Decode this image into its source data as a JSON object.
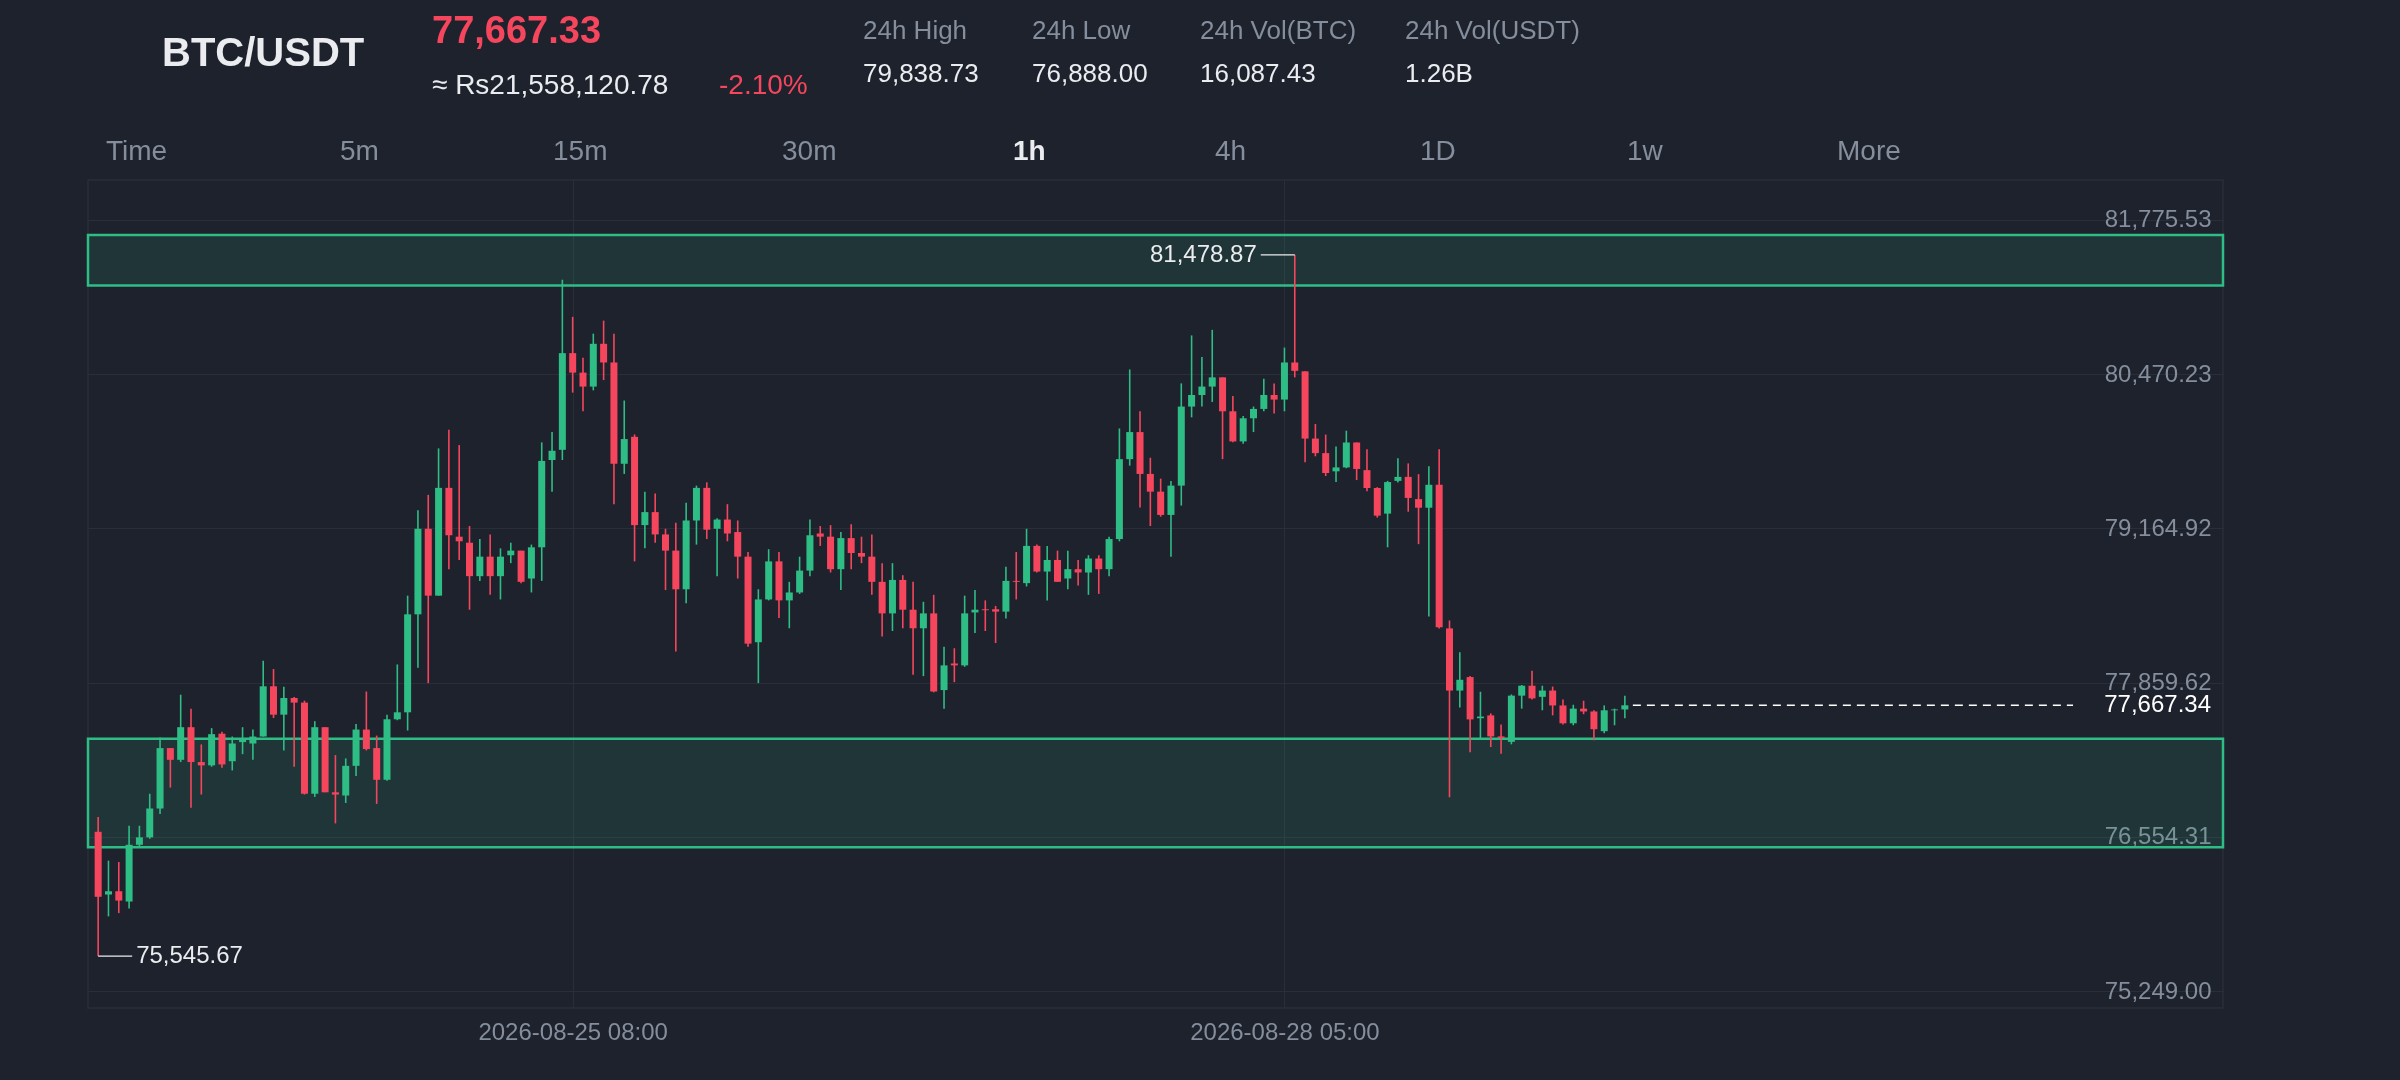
{
  "chart_data": {
    "type": "candlestick",
    "title": "BTC/USDT",
    "subtitle": "77,667.33",
    "x": [
      "2026-08-23T10:00",
      "2026-08-23T11:00",
      "2026-08-23T12:00",
      "2026-08-23T13:00",
      "2026-08-23T14:00",
      "2026-08-23T15:00",
      "2026-08-23T16:00",
      "2026-08-23T17:00",
      "2026-08-23T18:00",
      "2026-08-23T19:00",
      "2026-08-23T20:00",
      "2026-08-23T21:00",
      "2026-08-23T22:00",
      "2026-08-23T23:00",
      "2026-08-24T00:00",
      "2026-08-24T01:00",
      "2026-08-24T02:00",
      "2026-08-24T03:00",
      "2026-08-24T04:00",
      "2026-08-24T05:00",
      "2026-08-24T06:00",
      "2026-08-24T07:00",
      "2026-08-24T08:00",
      "2026-08-24T09:00",
      "2026-08-24T10:00",
      "2026-08-24T11:00",
      "2026-08-24T12:00",
      "2026-08-24T13:00",
      "2026-08-24T14:00",
      "2026-08-24T15:00",
      "2026-08-24T16:00",
      "2026-08-24T17:00",
      "2026-08-24T18:00",
      "2026-08-24T19:00",
      "2026-08-24T20:00",
      "2026-08-24T21:00",
      "2026-08-24T22:00",
      "2026-08-24T23:00",
      "2026-08-25T00:00",
      "2026-08-25T01:00",
      "2026-08-25T02:00",
      "2026-08-25T03:00",
      "2026-08-25T04:00",
      "2026-08-25T05:00",
      "2026-08-25T06:00",
      "2026-08-25T07:00",
      "2026-08-25T08:00",
      "2026-08-25T09:00",
      "2026-08-25T10:00",
      "2026-08-25T11:00",
      "2026-08-25T12:00",
      "2026-08-25T13:00",
      "2026-08-25T14:00",
      "2026-08-25T15:00",
      "2026-08-25T16:00",
      "2026-08-25T17:00",
      "2026-08-25T18:00",
      "2026-08-25T19:00",
      "2026-08-25T20:00",
      "2026-08-25T21:00",
      "2026-08-25T22:00",
      "2026-08-25T23:00",
      "2026-08-26T00:00",
      "2026-08-26T01:00",
      "2026-08-26T02:00",
      "2026-08-26T03:00",
      "2026-08-26T04:00",
      "2026-08-26T05:00",
      "2026-08-26T06:00",
      "2026-08-26T07:00",
      "2026-08-26T08:00",
      "2026-08-26T09:00",
      "2026-08-26T10:00",
      "2026-08-26T11:00",
      "2026-08-26T12:00",
      "2026-08-26T13:00",
      "2026-08-26T14:00",
      "2026-08-26T15:00",
      "2026-08-26T16:00",
      "2026-08-26T17:00",
      "2026-08-26T18:00",
      "2026-08-26T19:00",
      "2026-08-26T20:00",
      "2026-08-26T21:00",
      "2026-08-26T22:00",
      "2026-08-26T23:00",
      "2026-08-27T00:00",
      "2026-08-27T01:00",
      "2026-08-27T02:00",
      "2026-08-27T03:00",
      "2026-08-27T04:00",
      "2026-08-27T05:00",
      "2026-08-27T06:00",
      "2026-08-27T07:00",
      "2026-08-27T08:00",
      "2026-08-27T09:00",
      "2026-08-27T10:00",
      "2026-08-27T11:00",
      "2026-08-27T12:00",
      "2026-08-27T13:00",
      "2026-08-27T14:00",
      "2026-08-27T15:00",
      "2026-08-27T16:00",
      "2026-08-27T17:00",
      "2026-08-27T18:00",
      "2026-08-27T19:00",
      "2026-08-27T20:00",
      "2026-08-27T21:00",
      "2026-08-27T22:00",
      "2026-08-27T23:00",
      "2026-08-28T00:00",
      "2026-08-28T01:00",
      "2026-08-28T02:00",
      "2026-08-28T03:00",
      "2026-08-28T04:00",
      "2026-08-28T05:00",
      "2026-08-28T06:00",
      "2026-08-28T07:00",
      "2026-08-28T08:00",
      "2026-08-28T09:00",
      "2026-08-28T10:00",
      "2026-08-28T11:00",
      "2026-08-28T12:00",
      "2026-08-28T13:00",
      "2026-08-28T14:00",
      "2026-08-28T15:00",
      "2026-08-28T16:00",
      "2026-08-28T17:00",
      "2026-08-28T18:00",
      "2026-08-28T19:00",
      "2026-08-28T20:00",
      "2026-08-28T21:00",
      "2026-08-28T22:00",
      "2026-08-28T23:00",
      "2026-08-29T00:00",
      "2026-08-29T01:00",
      "2026-08-29T02:00",
      "2026-08-29T03:00",
      "2026-08-29T04:00",
      "2026-08-29T05:00",
      "2026-08-29T06:00",
      "2026-08-29T07:00",
      "2026-08-29T08:00",
      "2026-08-29T09:00",
      "2026-08-29T10:00",
      "2026-08-29T11:00",
      "2026-08-29T12:00",
      "2026-08-29T13:00",
      "2026-08-29T14:00"
    ],
    "ohlc": [
      [
        76597,
        76723,
        75545.67,
        76047
      ],
      [
        76066,
        76353,
        75881,
        76094
      ],
      [
        76094,
        76341,
        75909,
        76015
      ],
      [
        76007,
        76648,
        75948,
        76487
      ],
      [
        76487,
        76648,
        76471,
        76550
      ],
      [
        76550,
        76919,
        76538,
        76794
      ],
      [
        76794,
        77395,
        76747,
        77305
      ],
      [
        77305,
        77305,
        76971,
        77206
      ],
      [
        77206,
        77757,
        77187,
        77482
      ],
      [
        77482,
        77639,
        76801,
        77187
      ],
      [
        77187,
        77336,
        76912,
        77159
      ],
      [
        77159,
        77474,
        77147,
        77423
      ],
      [
        77427,
        77443,
        77139,
        77167
      ],
      [
        77194,
        77403,
        77116,
        77344
      ],
      [
        77356,
        77482,
        77254,
        77375
      ],
      [
        77344,
        77462,
        77206,
        77403
      ],
      [
        77403,
        78044,
        77403,
        77828
      ],
      [
        77828,
        77974,
        77560,
        77588
      ],
      [
        77588,
        77824,
        77285,
        77729
      ],
      [
        77729,
        77737,
        77147,
        77690
      ],
      [
        77690,
        77706,
        76912,
        76919
      ],
      [
        76919,
        77533,
        76892,
        77482
      ],
      [
        77482,
        77482,
        76931,
        76931
      ],
      [
        76931,
        77246,
        76668,
        76912
      ],
      [
        76904,
        77218,
        76841,
        77155
      ],
      [
        77155,
        77509,
        77069,
        77462
      ],
      [
        77462,
        77784,
        77285,
        77297
      ],
      [
        77305,
        77411,
        76833,
        77037
      ],
      [
        77037,
        77588,
        77029,
        77549
      ],
      [
        77549,
        78013,
        77541,
        77608
      ],
      [
        77608,
        78595,
        77454,
        78437
      ],
      [
        78437,
        79318,
        77985,
        79161
      ],
      [
        79161,
        79448,
        77855,
        78595
      ],
      [
        78595,
        79841,
        78595,
        79507
      ],
      [
        79507,
        79998,
        78819,
        79106
      ],
      [
        79094,
        79869,
        78897,
        79055
      ],
      [
        79043,
        79184,
        78476,
        78760
      ],
      [
        78760,
        79074,
        78720,
        78925
      ],
      [
        78925,
        79113,
        78602,
        78760
      ],
      [
        78760,
        78995,
        78563,
        78925
      ],
      [
        78937,
        79043,
        78870,
        78976
      ],
      [
        78976,
        78976,
        78701,
        78712
      ],
      [
        78740,
        79027,
        78622,
        79004
      ],
      [
        79004,
        79892,
        78720,
        79735
      ],
      [
        79743,
        79979,
        79475,
        79821
      ],
      [
        79829,
        81268,
        79743,
        80647
      ],
      [
        80647,
        80954,
        80313,
        80482
      ],
      [
        80482,
        80608,
        80155,
        80364
      ],
      [
        80364,
        80812,
        80332,
        80726
      ],
      [
        80726,
        80922,
        80419,
        80568
      ],
      [
        80568,
        80812,
        79369,
        79711
      ],
      [
        79711,
        80246,
        79625,
        79920
      ],
      [
        79939,
        79959,
        78885,
        79192
      ],
      [
        79192,
        79475,
        78996,
        79302
      ],
      [
        79302,
        79459,
        79043,
        79113
      ],
      [
        79113,
        79161,
        78642,
        78976
      ],
      [
        78976,
        79212,
        78122,
        78649
      ],
      [
        78649,
        79381,
        78531,
        79231
      ],
      [
        79231,
        79526,
        79027,
        79507
      ],
      [
        79507,
        79554,
        79074,
        79153
      ],
      [
        79161,
        79250,
        78760,
        79239
      ],
      [
        79239,
        79369,
        79055,
        79121
      ],
      [
        79133,
        79231,
        78740,
        78925
      ],
      [
        78925,
        78964,
        78162,
        78189
      ],
      [
        78201,
        78649,
        77855,
        78563
      ],
      [
        78563,
        78988,
        78555,
        78885
      ],
      [
        78885,
        78964,
        78406,
        78555
      ],
      [
        78555,
        78712,
        78319,
        78622
      ],
      [
        78622,
        78925,
        78610,
        78807
      ],
      [
        78807,
        79239,
        78760,
        79106
      ],
      [
        79121,
        79184,
        79016,
        79094
      ],
      [
        79094,
        79192,
        78791,
        78819
      ],
      [
        78819,
        79133,
        78642,
        79082
      ],
      [
        79082,
        79200,
        78819,
        78956
      ],
      [
        78956,
        79094,
        78870,
        78925
      ],
      [
        78925,
        79113,
        78602,
        78712
      ],
      [
        78712,
        78870,
        78249,
        78445
      ],
      [
        78445,
        78870,
        78296,
        78728
      ],
      [
        78728,
        78768,
        78319,
        78476
      ],
      [
        78476,
        78712,
        77926,
        78319
      ],
      [
        78319,
        78543,
        77914,
        78445
      ],
      [
        78445,
        78602,
        77777,
        77784
      ],
      [
        77796,
        78162,
        77639,
        78005
      ],
      [
        78021,
        78150,
        77863,
        78005
      ],
      [
        78005,
        78595,
        77993,
        78445
      ],
      [
        78453,
        78642,
        78280,
        78476
      ],
      [
        78480,
        78555,
        78296,
        78472
      ],
      [
        78480,
        78508,
        78194,
        78460
      ],
      [
        78460,
        78839,
        78402,
        78720
      ],
      [
        78720,
        78964,
        78563,
        78712
      ],
      [
        78701,
        79161,
        78673,
        79016
      ],
      [
        79016,
        79027,
        78791,
        78799
      ],
      [
        78799,
        79016,
        78555,
        78897
      ],
      [
        78897,
        78976,
        78712,
        78712
      ],
      [
        78740,
        78976,
        78649,
        78819
      ],
      [
        78819,
        78897,
        78681,
        78791
      ],
      [
        78791,
        78937,
        78602,
        78909
      ],
      [
        78909,
        78937,
        78610,
        78819
      ],
      [
        78819,
        79094,
        78760,
        79074
      ],
      [
        79074,
        80010,
        79055,
        79750
      ],
      [
        79750,
        80509,
        79695,
        79979
      ],
      [
        79979,
        80155,
        79341,
        79625
      ],
      [
        79625,
        79762,
        79184,
        79475
      ],
      [
        79475,
        79585,
        79263,
        79278
      ],
      [
        79278,
        79566,
        78925,
        79526
      ],
      [
        79526,
        80391,
        79357,
        80195
      ],
      [
        80195,
        80797,
        80104,
        80293
      ],
      [
        80293,
        80615,
        80195,
        80364
      ],
      [
        80364,
        80844,
        80234,
        80442
      ],
      [
        80442,
        80442,
        79750,
        80155
      ],
      [
        80155,
        80285,
        79892,
        79900
      ],
      [
        79900,
        80116,
        79880,
        80096
      ],
      [
        80096,
        80195,
        79979,
        80175
      ],
      [
        80175,
        80431,
        80155,
        80293
      ],
      [
        80293,
        80391,
        80136,
        80254
      ],
      [
        80254,
        80694,
        80155,
        80568
      ],
      [
        80568,
        81478.87,
        80442,
        80497
      ],
      [
        80493,
        80493,
        79724,
        79924
      ],
      [
        79924,
        80048,
        79774,
        79801
      ],
      [
        79801,
        79958,
        79607,
        79633
      ],
      [
        79647,
        79857,
        79556,
        79680
      ],
      [
        79680,
        79991,
        79673,
        79891
      ],
      [
        79891,
        79891,
        79573,
        79667
      ],
      [
        79657,
        79834,
        79479,
        79506
      ],
      [
        79506,
        79513,
        79255,
        79272
      ],
      [
        79289,
        79566,
        79004,
        79556
      ],
      [
        79566,
        79757,
        79553,
        79600
      ],
      [
        79600,
        79714,
        79305,
        79422
      ],
      [
        79412,
        79623,
        79031,
        79339
      ],
      [
        79339,
        79690,
        78418,
        79533
      ],
      [
        79533,
        79834,
        78318,
        78328
      ],
      [
        78318,
        78385,
        76889,
        77792
      ],
      [
        77792,
        78117,
        77649,
        77883
      ],
      [
        77906,
        77916,
        77270,
        77548
      ],
      [
        77558,
        77782,
        77381,
        77572
      ],
      [
        77582,
        77599,
        77314,
        77404
      ],
      [
        77404,
        77505,
        77257,
        77391
      ],
      [
        77358,
        77759,
        77337,
        77749
      ],
      [
        77749,
        77839,
        77639,
        77833
      ],
      [
        77833,
        77960,
        77716,
        77726
      ],
      [
        77739,
        77833,
        77625,
        77792
      ],
      [
        77792,
        77826,
        77582,
        77666
      ],
      [
        77666,
        77716,
        77505,
        77515
      ],
      [
        77515,
        77672,
        77498,
        77639
      ],
      [
        77639,
        77706,
        77592,
        77615
      ],
      [
        77615,
        77625,
        77371,
        77465
      ],
      [
        77448,
        77666,
        77431,
        77625
      ],
      [
        77625,
        77639,
        77498,
        77632
      ],
      [
        77632,
        77749,
        77558,
        77667.34
      ]
    ],
    "colors": [
      "#f6465d",
      "#2ebd85",
      "#f6465d",
      "#2ebd85",
      "#2ebd85",
      "#2ebd85",
      "#2ebd85",
      "#f6465d",
      "#2ebd85",
      "#f6465d",
      "#f6465d",
      "#2ebd85",
      "#f6465d",
      "#2ebd85",
      "#2ebd85",
      "#2ebd85",
      "#2ebd85",
      "#f6465d",
      "#2ebd85",
      "#f6465d",
      "#f6465d",
      "#2ebd85",
      "#f6465d",
      "#f6465d",
      "#2ebd85",
      "#2ebd85",
      "#f6465d",
      "#f6465d",
      "#2ebd85",
      "#2ebd85",
      "#2ebd85",
      "#2ebd85",
      "#f6465d",
      "#2ebd85",
      "#f6465d",
      "#f6465d",
      "#f6465d",
      "#2ebd85",
      "#f6465d",
      "#2ebd85",
      "#2ebd85",
      "#f6465d",
      "#2ebd85",
      "#2ebd85",
      "#2ebd85",
      "#2ebd85",
      "#f6465d",
      "#f6465d",
      "#2ebd85",
      "#f6465d",
      "#f6465d",
      "#2ebd85",
      "#f6465d",
      "#2ebd85",
      "#f6465d",
      "#f6465d",
      "#f6465d",
      "#2ebd85",
      "#2ebd85",
      "#f6465d",
      "#2ebd85",
      "#f6465d",
      "#f6465d",
      "#f6465d",
      "#2ebd85",
      "#2ebd85",
      "#f6465d",
      "#2ebd85",
      "#2ebd85",
      "#2ebd85",
      "#f6465d",
      "#f6465d",
      "#2ebd85",
      "#f6465d",
      "#f6465d",
      "#f6465d",
      "#f6465d",
      "#2ebd85",
      "#f6465d",
      "#f6465d",
      "#2ebd85",
      "#f6465d",
      "#2ebd85",
      "#f6465d",
      "#2ebd85",
      "#2ebd85",
      "#f6465d",
      "#f6465d",
      "#2ebd85",
      "#f6465d",
      "#2ebd85",
      "#f6465d",
      "#2ebd85",
      "#f6465d",
      "#2ebd85",
      "#f6465d",
      "#2ebd85",
      "#f6465d",
      "#2ebd85",
      "#2ebd85",
      "#2ebd85",
      "#f6465d",
      "#f6465d",
      "#f6465d",
      "#2ebd85",
      "#2ebd85",
      "#2ebd85",
      "#2ebd85",
      "#2ebd85",
      "#f6465d",
      "#f6465d",
      "#2ebd85",
      "#2ebd85",
      "#2ebd85",
      "#f6465d",
      "#2ebd85",
      "#f6465d",
      "#f6465d",
      "#f6465d",
      "#f6465d",
      "#2ebd85",
      "#2ebd85",
      "#f6465d",
      "#f6465d",
      "#f6465d",
      "#2ebd85",
      "#2ebd85",
      "#f6465d",
      "#f6465d",
      "#2ebd85",
      "#f6465d",
      "#f6465d",
      "#2ebd85",
      "#f6465d",
      "#2ebd85",
      "#f6465d",
      "#f6465d",
      "#2ebd85",
      "#2ebd85",
      "#f6465d",
      "#2ebd85",
      "#f6465d",
      "#f6465d",
      "#2ebd85",
      "#f6465d",
      "#f6465d",
      "#2ebd85",
      "#2ebd85",
      "#2ebd85"
    ],
    "xlim": [
      "2026-08-23T09:30",
      "2026-08-31T23:30"
    ],
    "xticks": [
      {
        "value": "2026-08-25T08:00",
        "label": "2026-08-25 08:00"
      },
      {
        "value": "2026-08-28T05:00",
        "label": "2026-08-28 05:00"
      }
    ],
    "ylim": [
      75106,
      82112
    ],
    "yticks": [
      {
        "value": 75249,
        "label": "75,249.00"
      },
      {
        "value": 76554.31,
        "label": "76,554.31"
      },
      {
        "value": 77859.62,
        "label": "77,859.62"
      },
      {
        "value": 79164.92,
        "label": "79,164.92"
      },
      {
        "value": 80470.23,
        "label": "80,470.23"
      },
      {
        "value": 81775.53,
        "label": "81,775.53"
      }
    ],
    "grid": true,
    "bands": [
      {
        "axis": "y",
        "from": 81219,
        "to": 81646,
        "color": "#2ebd85"
      },
      {
        "axis": "y",
        "from": 76466,
        "to": 77385,
        "color": "#2ebd85"
      }
    ],
    "ref_lines": [
      {
        "axis": "y",
        "value": 77667.34,
        "label": "77,667.34",
        "color": "#ffffff",
        "line_style": "dashed"
      }
    ],
    "annotations": [
      "≈ Rs21,558,120.78",
      "-2.10%",
      "24h High",
      "79,838.73",
      "24h Low",
      "76,888.00",
      "24h Vol(BTC)",
      "16,087.43",
      "24h Vol(USDT)",
      "1.26B",
      "Time",
      "5m",
      "15m",
      "30m",
      "1h",
      "4h",
      "1D",
      "1w",
      "More",
      {
        "text": "81,478.87",
        "x": "2026-08-28T06:00",
        "y": 81478.87
      },
      {
        "text": "75,545.67",
        "x": "2026-08-23T10:00",
        "y": 75545.67
      }
    ]
  }
}
